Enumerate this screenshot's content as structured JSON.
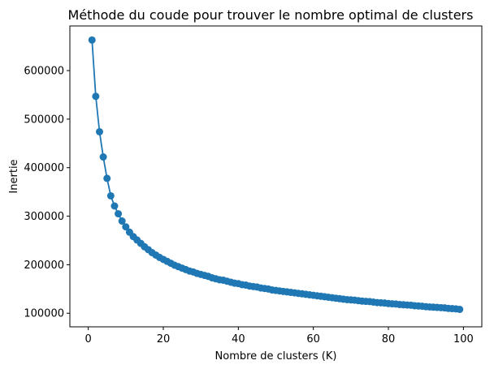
{
  "chart_data": {
    "type": "line",
    "title": "Méthode du coude pour trouver le nombre optimal de clusters",
    "xlabel": "Nombre de clusters (K)",
    "ylabel": "Inertie",
    "xlim": [
      -4.9,
      104.9
    ],
    "ylim": [
      72000,
      692000
    ],
    "xticks": [
      0,
      20,
      40,
      60,
      80,
      100
    ],
    "xtick_labels": [
      "0",
      "20",
      "40",
      "60",
      "80",
      "100"
    ],
    "yticks": [
      100000,
      200000,
      300000,
      400000,
      500000,
      600000
    ],
    "ytick_labels": [
      "100000",
      "200000",
      "300000",
      "400000",
      "500000",
      "600000"
    ],
    "grid": false,
    "series": [
      {
        "color": "#1f77b4",
        "marker": "circle",
        "x": [
          1,
          2,
          3,
          4,
          5,
          6,
          7,
          8,
          9,
          10,
          11,
          12,
          13,
          14,
          15,
          16,
          17,
          18,
          19,
          20,
          21,
          22,
          23,
          24,
          25,
          26,
          27,
          28,
          29,
          30,
          31,
          32,
          33,
          34,
          35,
          36,
          37,
          38,
          39,
          40,
          41,
          42,
          43,
          44,
          45,
          46,
          47,
          48,
          49,
          50,
          51,
          52,
          53,
          54,
          55,
          56,
          57,
          58,
          59,
          60,
          61,
          62,
          63,
          64,
          65,
          66,
          67,
          68,
          69,
          70,
          71,
          72,
          73,
          74,
          75,
          76,
          77,
          78,
          79,
          80,
          81,
          82,
          83,
          84,
          85,
          86,
          87,
          88,
          89,
          90,
          91,
          92,
          93,
          94,
          95,
          96,
          97,
          98,
          99
        ],
        "y": [
          663000,
          547000,
          474000,
          422000,
          378000,
          342000,
          321000,
          305000,
          290000,
          278000,
          267000,
          258000,
          251000,
          244000,
          237000,
          231000,
          225000,
          220000,
          215000,
          211000,
          207000,
          203000,
          199000,
          196000,
          193000,
          190000,
          187000,
          185000,
          182000,
          180000,
          178000,
          176000,
          173000,
          171000,
          169000,
          168000,
          166000,
          164000,
          162000,
          161000,
          159000,
          158000,
          156000,
          155000,
          154000,
          152000,
          151000,
          150000,
          148000,
          147000,
          146000,
          145000,
          144000,
          143000,
          142000,
          141000,
          140000,
          139000,
          138000,
          137000,
          136000,
          135000,
          134000,
          133000,
          132000,
          131000,
          130000,
          129000,
          128000,
          127500,
          127000,
          126000,
          125000,
          124500,
          124000,
          123000,
          122000,
          121500,
          121000,
          120000,
          119500,
          119000,
          118000,
          117500,
          117000,
          116500,
          115500,
          115000,
          114500,
          113500,
          113000,
          112500,
          112000,
          111500,
          111000,
          110000,
          109500,
          109000,
          108000
        ]
      }
    ]
  }
}
